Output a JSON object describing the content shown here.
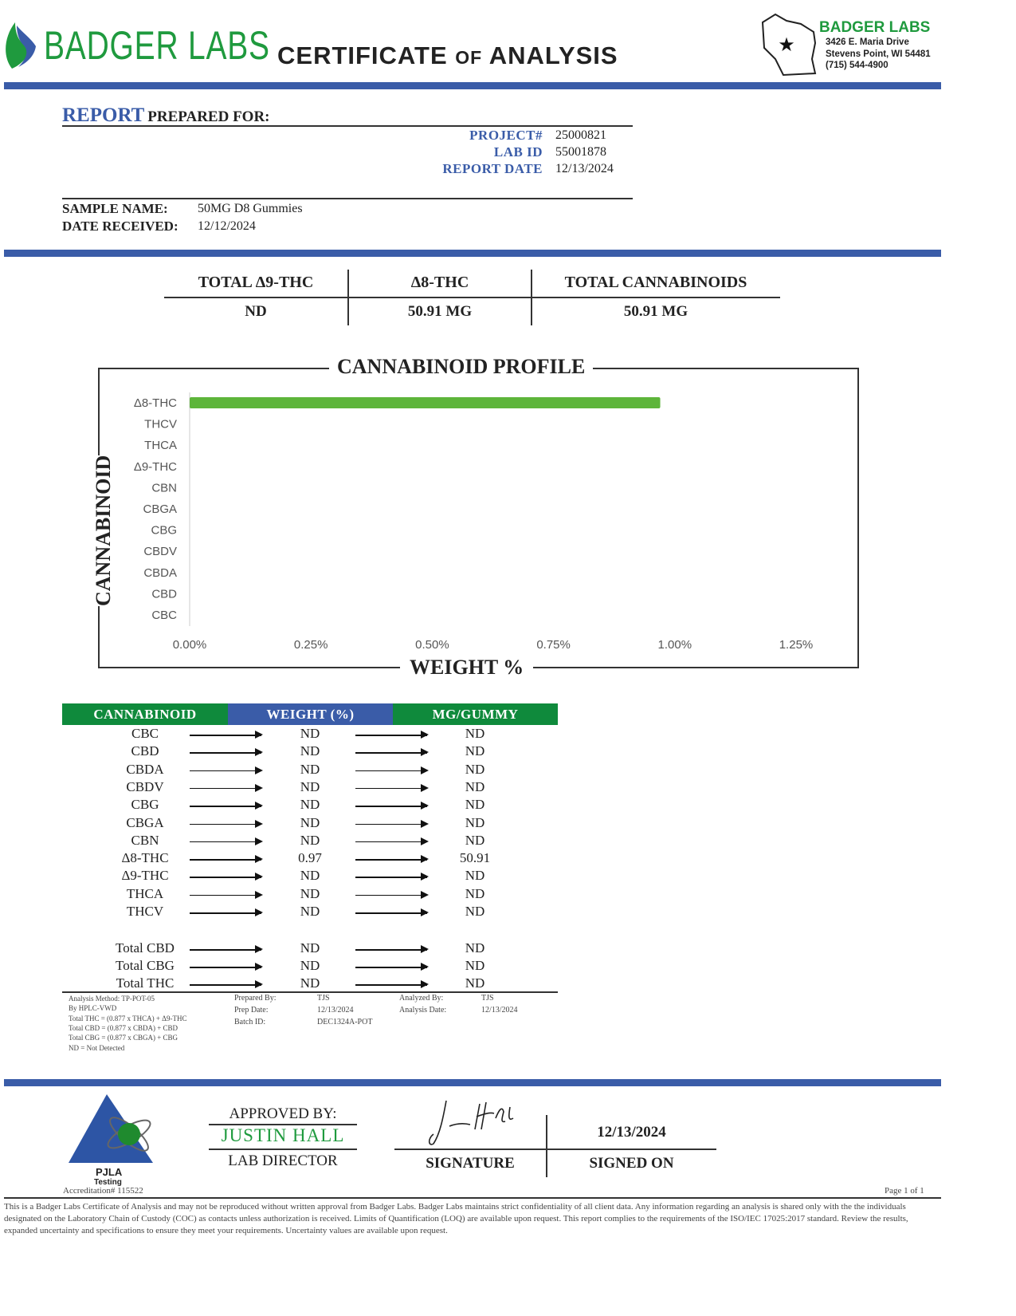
{
  "header": {
    "brand": "BADGER LABS",
    "title_main1": "CERTIFICATE",
    "title_of": "OF",
    "title_main2": "ANALYSIS",
    "address": {
      "brand": "BADGER LABS",
      "line1": "3426 E. Maria Drive",
      "line2": "Stevens Point, WI 54481",
      "phone": "(715) 544-4900"
    }
  },
  "report": {
    "report_label": "REPORT",
    "prepared_for": "PREPARED FOR:",
    "fields": [
      {
        "label": "PROJECT#",
        "value": "25000821"
      },
      {
        "label": "LAB ID",
        "value": "55001878"
      },
      {
        "label": "REPORT DATE",
        "value": "12/13/2024"
      }
    ],
    "sample_name_label": "SAMPLE NAME:",
    "sample_name": "50MG D8 Gummies",
    "date_received_label": "DATE RECEIVED:",
    "date_received": "12/12/2024"
  },
  "summary": [
    {
      "label": "TOTAL Δ9-THC",
      "value": "ND"
    },
    {
      "label": "Δ8-THC",
      "value": "50.91 MG"
    },
    {
      "label": "TOTAL CANNABINOIDS",
      "value": "50.91 MG"
    }
  ],
  "chart_data": {
    "type": "bar",
    "orientation": "horizontal",
    "title": "CANNABINOID PROFILE",
    "xlabel": "WEIGHT %",
    "ylabel": "CANNABINOID",
    "categories": [
      "Δ8-THC",
      "THCV",
      "THCA",
      "Δ9-THC",
      "CBN",
      "CBGA",
      "CBG",
      "CBDV",
      "CBDA",
      "CBD",
      "CBC"
    ],
    "values": [
      0.97,
      0,
      0,
      0,
      0,
      0,
      0,
      0,
      0,
      0,
      0
    ],
    "xlim": [
      0,
      1.25
    ],
    "xticks": [
      "0.00%",
      "0.25%",
      "0.50%",
      "0.75%",
      "1.00%",
      "1.25%"
    ],
    "grid": false,
    "bar_color": "#5db53a"
  },
  "table": {
    "headers": [
      "CANNABINOID",
      "WEIGHT (%)",
      "MG/GUMMY"
    ],
    "header_colors": [
      "#0f8a3c",
      "#3a5ca8",
      "#0f8a3c"
    ],
    "rows": [
      [
        "CBC",
        "ND",
        "ND"
      ],
      [
        "CBD",
        "ND",
        "ND"
      ],
      [
        "CBDA",
        "ND",
        "ND"
      ],
      [
        "CBDV",
        "ND",
        "ND"
      ],
      [
        "CBG",
        "ND",
        "ND"
      ],
      [
        "CBGA",
        "ND",
        "ND"
      ],
      [
        "CBN",
        "ND",
        "ND"
      ],
      [
        "Δ8-THC",
        "0.97",
        "50.91"
      ],
      [
        "Δ9-THC",
        "ND",
        "ND"
      ],
      [
        "THCA",
        "ND",
        "ND"
      ],
      [
        "THCV",
        "ND",
        "ND"
      ]
    ],
    "totals": [
      [
        "Total CBD",
        "ND",
        "ND"
      ],
      [
        "Total CBG",
        "ND",
        "ND"
      ],
      [
        "Total THC",
        "ND",
        "ND"
      ]
    ]
  },
  "notes": {
    "method": [
      "Analysis Method: TP-POT-05",
      "By HPLC-VWD",
      "Total THC = (0.877 x THCA) + Δ9-THC",
      "Total CBD = (0.877 x CBDA) + CBD",
      "Total CBG = (0.877 x CBGA) + CBG",
      "ND = Not Detected"
    ],
    "prep": [
      {
        "label": "Prepared By:",
        "value": "TJS"
      },
      {
        "label": "Prep Date:",
        "value": "12/13/2024"
      },
      {
        "label": "Batch ID:",
        "value": "DEC1324A-POT"
      }
    ],
    "analysis": [
      {
        "label": "Analyzed By:",
        "value": "TJS"
      },
      {
        "label": "Analysis Date:",
        "value": "12/13/2024"
      }
    ]
  },
  "footer": {
    "pjla": "PJLA",
    "testing": "Testing",
    "accreditation": "Accreditation# 115522",
    "approved_by": "APPROVED BY:",
    "approver": "JUSTIN HALL",
    "approver_title": "LAB DIRECTOR",
    "signature_label": "SIGNATURE",
    "signed_date": "12/13/2024",
    "signed_on_label": "SIGNED ON",
    "page": "Page 1 of 1",
    "disclaimer": "This is a Badger Labs Certificate of Analysis and may not be reproduced without written approval from Badger Labs. Badger Labs maintains strict confidentiality of all client data. Any information regarding an analysis is shared only with the the individuals designated on the Laboratory Chain of Custody (COC) as contacts unless authorization is received. Limits of Quantification (LOQ) are available upon request. This report complies to the requirements of the ISO/IEC 17025:2017 standard. Review the results, expanded uncertainty and specifications to ensure they meet your requirements. Uncertainty values are available upon request."
  }
}
